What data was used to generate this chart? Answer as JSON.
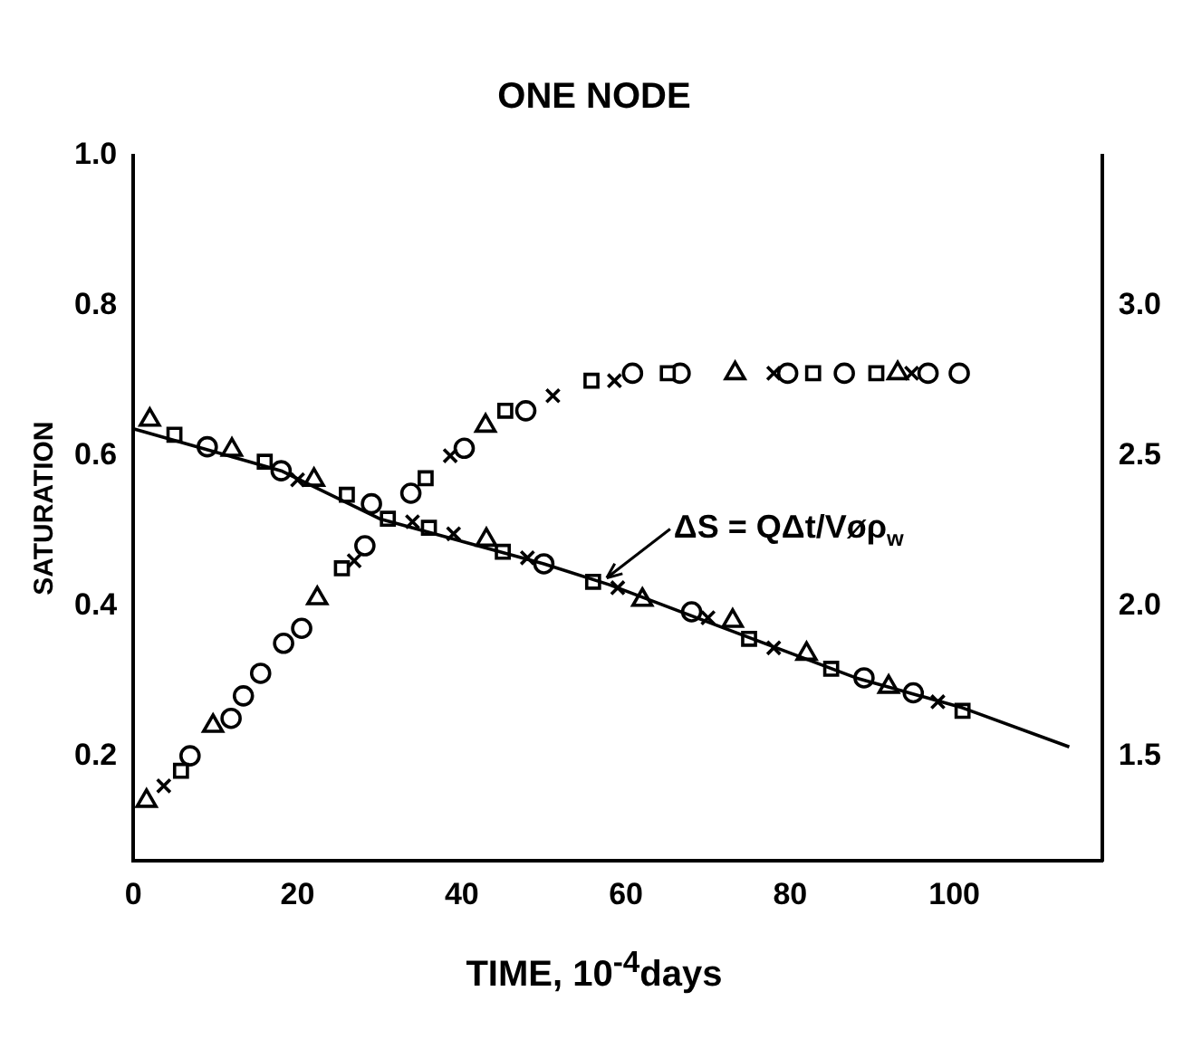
{
  "chart_data": {
    "type": "scatter",
    "title": "ONE NODE",
    "xlabel": "TIME, 10$^{-4}$days",
    "ylabel": "SATURATION",
    "xlim": [
      0,
      118
    ],
    "xticks": [
      0,
      20,
      40,
      60,
      80,
      100
    ],
    "ylim": [
      0.06,
      1.0
    ],
    "yticks": [
      0.2,
      0.4,
      {
        "value": 0.6,
        "label": "0.6"
      },
      {
        "value": 0.8,
        "label": "0.8"
      },
      {
        "value": 1.0,
        "label": "1.0"
      }
    ],
    "y2lim": [
      1.15,
      3.5
    ],
    "y2ticks": [
      1.5,
      {
        "value": 2.0,
        "label": "2.0"
      },
      2.5,
      {
        "value": 3.0,
        "label": "3.0"
      }
    ],
    "grid": false,
    "legend": false,
    "annotations": [
      {
        "text": "ΔS = QΔt/Vøρ$_{w}$",
        "x": 57,
        "y": 0.43
      }
    ],
    "series": [
      {
        "type": "line",
        "axis": "y2",
        "color": "#000000",
        "marker": "none",
        "x": [
          0,
          18,
          30,
          50,
          58,
          88,
          101,
          114
        ],
        "values": [
          2.59,
          2.45,
          2.29,
          2.14,
          2.07,
          1.76,
          1.66,
          1.53
        ]
      },
      {
        "color": "#000000",
        "marker": "triangle",
        "x": [
          1.6,
          9.7,
          22.4,
          42.9,
          73.3,
          93.1
        ],
        "values": [
          0.14,
          0.24,
          0.41,
          0.64,
          0.71,
          0.71
        ]
      },
      {
        "color": "#000000",
        "marker": "cross",
        "x": [
          3.7,
          26.9,
          38.6,
          51.1,
          58.6,
          78,
          94.8
        ],
        "values": [
          0.16,
          0.46,
          0.6,
          0.68,
          0.7,
          0.71,
          0.71
        ]
      },
      {
        "color": "#000000",
        "marker": "square",
        "x": [
          5.8,
          25.4,
          35.6,
          45.3,
          55.8,
          65.1,
          82.8,
          90.5
        ],
        "values": [
          0.18,
          0.45,
          0.57,
          0.66,
          0.7,
          0.71,
          0.71,
          0.71
        ]
      },
      {
        "color": "#000000",
        "marker": "circle",
        "x": [
          6.9,
          13.4,
          18.3,
          28.2,
          47.8,
          60.8,
          66.6,
          86.6,
          96.8
        ],
        "values": [
          0.2,
          0.28,
          0.35,
          0.48,
          0.66,
          0.71,
          0.71,
          0.71,
          0.71
        ]
      },
      {
        "color": "#000000",
        "marker": "circle",
        "x": [
          11.9,
          15.5,
          20.5,
          33.8,
          40.3,
          79.7,
          100.6
        ],
        "values": [
          0.25,
          0.31,
          0.37,
          0.55,
          0.61,
          0.71,
          0.71
        ]
      },
      {
        "axis": "y2",
        "color": "#000000",
        "marker": "triangle",
        "x": [
          2,
          12,
          22,
          43,
          62,
          73,
          82,
          92
        ],
        "values": [
          2.62,
          2.52,
          2.42,
          2.22,
          2.02,
          1.95,
          1.84,
          1.73
        ]
      },
      {
        "axis": "y2",
        "color": "#000000",
        "marker": "square",
        "x": [
          5,
          16,
          26,
          31,
          36,
          45,
          56,
          75,
          85,
          101
        ],
        "values": [
          2.57,
          2.48,
          2.37,
          2.29,
          2.26,
          2.18,
          2.08,
          1.89,
          1.79,
          1.65
        ]
      },
      {
        "axis": "y2",
        "color": "#000000",
        "marker": "circle",
        "x": [
          9,
          95
        ],
        "values": [
          2.53,
          1.71
        ]
      },
      {
        "axis": "y2",
        "color": "#000000",
        "marker": "circle",
        "x": [
          18,
          29,
          50,
          68,
          89
        ],
        "values": [
          2.45,
          2.34,
          2.14,
          1.98,
          1.76
        ]
      },
      {
        "axis": "y2",
        "color": "#000000",
        "marker": "cross",
        "x": [
          20,
          34,
          39,
          48,
          59,
          70,
          78,
          98
        ],
        "values": [
          2.42,
          2.28,
          2.24,
          2.16,
          2.06,
          1.96,
          1.86,
          1.68
        ]
      }
    ]
  }
}
